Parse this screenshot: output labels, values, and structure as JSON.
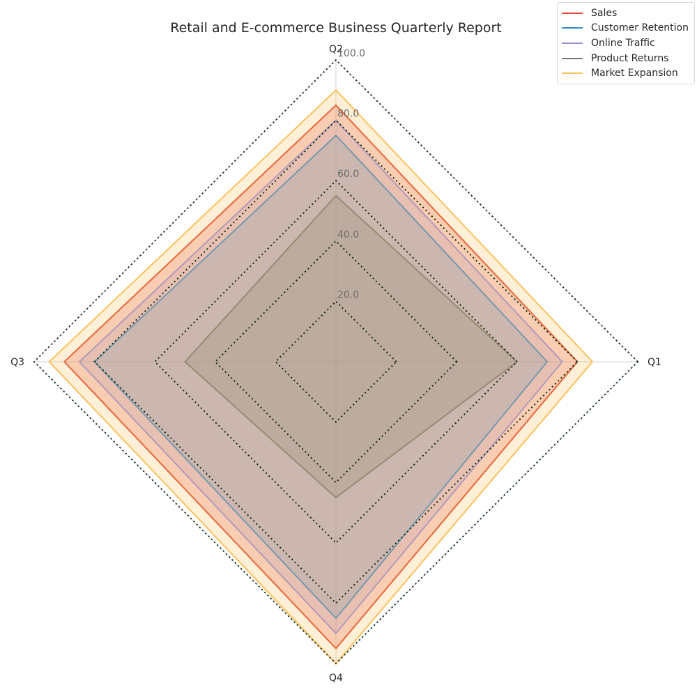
{
  "chart_data": {
    "type": "radar",
    "title": "Retail and E-commerce Business Quarterly Report",
    "categories": [
      "Q1",
      "Q2",
      "Q3",
      "Q4"
    ],
    "rlim": [
      0,
      100
    ],
    "rticks": [
      20,
      40,
      60,
      80,
      100
    ],
    "rtick_labels": [
      "20.0",
      "40.0",
      "60.0",
      "80.0",
      "100.0"
    ],
    "grid": true,
    "legend_position": "top-right",
    "series": [
      {
        "name": "Sales",
        "values": [
          80,
          85,
          90,
          95
        ],
        "color": "#e24a33"
      },
      {
        "name": "Customer Retention",
        "values": [
          70,
          75,
          80,
          85
        ],
        "color": "#348abd"
      },
      {
        "name": "Online Traffic",
        "values": [
          75,
          80,
          85,
          90
        ],
        "color": "#988ed5"
      },
      {
        "name": "Product Returns",
        "values": [
          60,
          55,
          50,
          45
        ],
        "color": "#777777"
      },
      {
        "name": "Market Expansion",
        "values": [
          85,
          90,
          95,
          100
        ],
        "color": "#fbc15e"
      }
    ]
  }
}
